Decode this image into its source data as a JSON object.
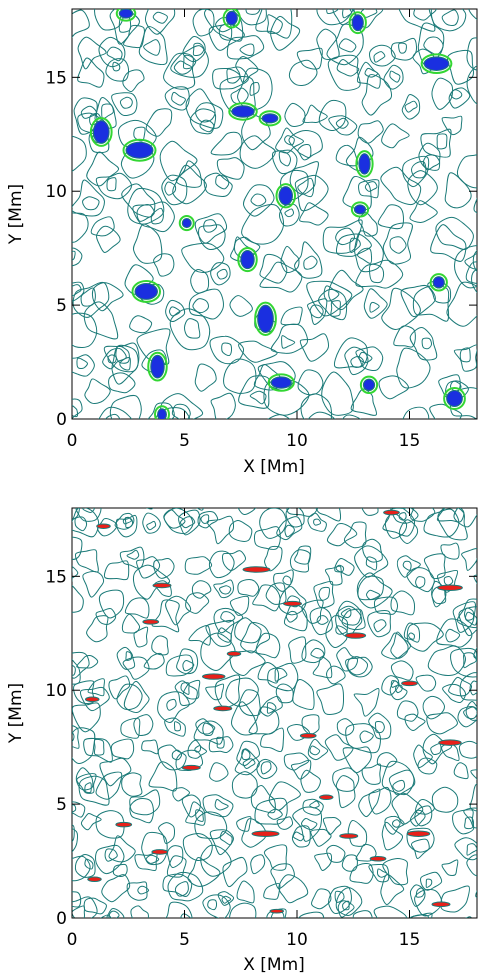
{
  "chart_data": [
    {
      "type": "contour",
      "xlabel": "X [Mm]",
      "ylabel": "Y [Mm]",
      "xlim": [
        0,
        18
      ],
      "ylim": [
        0,
        18
      ],
      "xticks": [
        0,
        5,
        10,
        15
      ],
      "yticks": [
        0,
        5,
        10,
        15
      ],
      "colors": {
        "contour": "#1b7a78",
        "highlight": "#1a2fe0",
        "edge": "#33d633"
      },
      "features": [
        {
          "x": 3.0,
          "y": 11.8,
          "rx": 0.6,
          "ry": 0.35
        },
        {
          "x": 1.3,
          "y": 12.6,
          "rx": 0.35,
          "ry": 0.5
        },
        {
          "x": 7.6,
          "y": 13.5,
          "rx": 0.5,
          "ry": 0.25
        },
        {
          "x": 8.8,
          "y": 13.2,
          "rx": 0.35,
          "ry": 0.2
        },
        {
          "x": 16.2,
          "y": 15.6,
          "rx": 0.55,
          "ry": 0.3
        },
        {
          "x": 13.0,
          "y": 11.2,
          "rx": 0.25,
          "ry": 0.45
        },
        {
          "x": 9.5,
          "y": 9.8,
          "rx": 0.3,
          "ry": 0.4
        },
        {
          "x": 7.8,
          "y": 7.0,
          "rx": 0.3,
          "ry": 0.4
        },
        {
          "x": 3.3,
          "y": 5.6,
          "rx": 0.5,
          "ry": 0.35
        },
        {
          "x": 8.6,
          "y": 4.4,
          "rx": 0.35,
          "ry": 0.6
        },
        {
          "x": 3.8,
          "y": 2.3,
          "rx": 0.3,
          "ry": 0.5
        },
        {
          "x": 9.3,
          "y": 1.6,
          "rx": 0.45,
          "ry": 0.25
        },
        {
          "x": 17.0,
          "y": 0.9,
          "rx": 0.35,
          "ry": 0.35
        },
        {
          "x": 13.2,
          "y": 1.5,
          "rx": 0.25,
          "ry": 0.25
        },
        {
          "x": 4.0,
          "y": 0.2,
          "rx": 0.2,
          "ry": 0.25
        },
        {
          "x": 16.3,
          "y": 6.0,
          "rx": 0.25,
          "ry": 0.25
        },
        {
          "x": 12.8,
          "y": 9.2,
          "rx": 0.25,
          "ry": 0.2
        },
        {
          "x": 2.4,
          "y": 17.8,
          "rx": 0.3,
          "ry": 0.2
        },
        {
          "x": 7.1,
          "y": 17.6,
          "rx": 0.25,
          "ry": 0.3
        },
        {
          "x": 12.7,
          "y": 17.4,
          "rx": 0.25,
          "ry": 0.35
        },
        {
          "x": 5.1,
          "y": 8.6,
          "rx": 0.2,
          "ry": 0.2
        }
      ]
    },
    {
      "type": "contour",
      "xlabel": "X [Mm]",
      "ylabel": "Y [Mm]",
      "xlim": [
        0,
        18
      ],
      "ylim": [
        0,
        18
      ],
      "xticks": [
        0,
        5,
        10,
        15
      ],
      "yticks": [
        0,
        5,
        10,
        15
      ],
      "colors": {
        "contour": "#1b7a78",
        "highlight": "#e8201a"
      },
      "features": [
        {
          "x": 8.2,
          "y": 15.3,
          "rx": 0.6,
          "ry": 0.12
        },
        {
          "x": 4.0,
          "y": 14.6,
          "rx": 0.4,
          "ry": 0.1
        },
        {
          "x": 16.8,
          "y": 14.5,
          "rx": 0.55,
          "ry": 0.12
        },
        {
          "x": 12.6,
          "y": 12.4,
          "rx": 0.45,
          "ry": 0.12
        },
        {
          "x": 6.3,
          "y": 10.6,
          "rx": 0.5,
          "ry": 0.12
        },
        {
          "x": 9.8,
          "y": 13.8,
          "rx": 0.4,
          "ry": 0.1
        },
        {
          "x": 3.5,
          "y": 13.0,
          "rx": 0.35,
          "ry": 0.1
        },
        {
          "x": 16.8,
          "y": 7.7,
          "rx": 0.5,
          "ry": 0.12
        },
        {
          "x": 6.7,
          "y": 9.2,
          "rx": 0.4,
          "ry": 0.1
        },
        {
          "x": 0.9,
          "y": 9.6,
          "rx": 0.3,
          "ry": 0.1
        },
        {
          "x": 10.5,
          "y": 8.0,
          "rx": 0.35,
          "ry": 0.1
        },
        {
          "x": 5.3,
          "y": 6.6,
          "rx": 0.4,
          "ry": 0.1
        },
        {
          "x": 8.6,
          "y": 3.7,
          "rx": 0.6,
          "ry": 0.12
        },
        {
          "x": 12.3,
          "y": 3.6,
          "rx": 0.4,
          "ry": 0.1
        },
        {
          "x": 15.4,
          "y": 3.7,
          "rx": 0.5,
          "ry": 0.12
        },
        {
          "x": 3.9,
          "y": 2.9,
          "rx": 0.35,
          "ry": 0.1
        },
        {
          "x": 1.0,
          "y": 1.7,
          "rx": 0.3,
          "ry": 0.1
        },
        {
          "x": 13.6,
          "y": 2.6,
          "rx": 0.35,
          "ry": 0.1
        },
        {
          "x": 16.4,
          "y": 0.6,
          "rx": 0.4,
          "ry": 0.1
        },
        {
          "x": 9.1,
          "y": 0.3,
          "rx": 0.3,
          "ry": 0.08
        },
        {
          "x": 1.4,
          "y": 17.2,
          "rx": 0.3,
          "ry": 0.1
        },
        {
          "x": 14.2,
          "y": 17.8,
          "rx": 0.35,
          "ry": 0.1
        },
        {
          "x": 11.3,
          "y": 5.3,
          "rx": 0.3,
          "ry": 0.1
        },
        {
          "x": 2.3,
          "y": 4.1,
          "rx": 0.35,
          "ry": 0.1
        },
        {
          "x": 7.2,
          "y": 11.6,
          "rx": 0.3,
          "ry": 0.1
        },
        {
          "x": 15.0,
          "y": 10.3,
          "rx": 0.35,
          "ry": 0.1
        }
      ]
    }
  ]
}
